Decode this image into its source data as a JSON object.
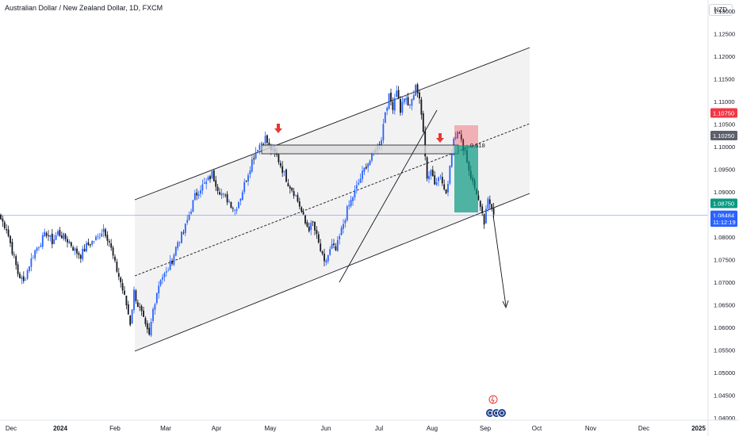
{
  "header": {
    "title": "Australian Dollar / New Zealand Dollar, 1D, FXCM",
    "currency": "NZD"
  },
  "colors": {
    "up": "#2962ff",
    "down": "#131722",
    "channel_fill": "#f2f2f2",
    "line": "#131722",
    "arrow_red": "#e53935",
    "tp_green": "#089981",
    "sl_red": "#f23645",
    "current_line": "#2962ff"
  },
  "chart_data": {
    "type": "candlestick",
    "y_ticks": [
      "1.13000",
      "1.12500",
      "1.12000",
      "1.11500",
      "1.11000",
      "1.10500",
      "1.10000",
      "1.09500",
      "1.09000",
      "1.08500",
      "1.08000",
      "1.07500",
      "1.07000",
      "1.06500",
      "1.06000",
      "1.05500",
      "1.05000",
      "1.04500",
      "1.04000"
    ],
    "ylim": [
      1.0395,
      1.1325
    ],
    "x_ticks": [
      {
        "label": "Dec",
        "bold": false
      },
      {
        "label": "2024",
        "bold": true
      },
      {
        "label": "Feb",
        "bold": false
      },
      {
        "label": "Mar",
        "bold": false
      },
      {
        "label": "Apr",
        "bold": false
      },
      {
        "label": "May",
        "bold": false
      },
      {
        "label": "Jun",
        "bold": false
      },
      {
        "label": "Jul",
        "bold": false
      },
      {
        "label": "Aug",
        "bold": false
      },
      {
        "label": "Sep",
        "bold": false
      },
      {
        "label": "Oct",
        "bold": false
      },
      {
        "label": "Nov",
        "bold": false
      },
      {
        "label": "Dec",
        "bold": false
      },
      {
        "label": "2025",
        "bold": true
      }
    ],
    "price_labels": [
      {
        "text": "1.10750",
        "value": 1.1075,
        "color": "#f23645"
      },
      {
        "text": "1.10250",
        "value": 1.1025,
        "color": "#5d606b"
      },
      {
        "text": "1.08750",
        "value": 1.0875,
        "color": "#089981"
      },
      {
        "text": "1.08484",
        "value": 1.08484,
        "color": "#2962ff"
      },
      {
        "text": "11:12:19",
        "value": 1.08334,
        "color": "#2962ff"
      }
    ],
    "current_price": 1.08484,
    "fib_label": "0.618",
    "series_anchors": [
      [
        0,
        1.084
      ],
      [
        3,
        1.082
      ],
      [
        6,
        1.077
      ],
      [
        9,
        1.072
      ],
      [
        12,
        1.07
      ],
      [
        15,
        1.074
      ],
      [
        18,
        1.077
      ],
      [
        21,
        1.079
      ],
      [
        24,
        1.081
      ],
      [
        27,
        1.079
      ],
      [
        30,
        1.081
      ],
      [
        33,
        1.08
      ],
      [
        36,
        1.079
      ],
      [
        39,
        1.077
      ],
      [
        42,
        1.076
      ],
      [
        45,
        1.078
      ],
      [
        48,
        1.079
      ],
      [
        51,
        1.08
      ],
      [
        54,
        1.082
      ],
      [
        57,
        1.079
      ],
      [
        60,
        1.074
      ],
      [
        63,
        1.07
      ],
      [
        66,
        1.065
      ],
      [
        68,
        1.061
      ],
      [
        70,
        1.068
      ],
      [
        72,
        1.065
      ],
      [
        74,
        1.063
      ],
      [
        76,
        1.06
      ],
      [
        78,
        1.058
      ],
      [
        80,
        1.064
      ],
      [
        82,
        1.068
      ],
      [
        84,
        1.071
      ],
      [
        87,
        1.072
      ],
      [
        90,
        1.075
      ],
      [
        93,
        1.079
      ],
      [
        96,
        1.081
      ],
      [
        99,
        1.085
      ],
      [
        102,
        1.089
      ],
      [
        105,
        1.091
      ],
      [
        108,
        1.092
      ],
      [
        111,
        1.094
      ],
      [
        114,
        1.091
      ],
      [
        117,
        1.089
      ],
      [
        120,
        1.088
      ],
      [
        123,
        1.086
      ],
      [
        126,
        1.089
      ],
      [
        129,
        1.093
      ],
      [
        132,
        1.097
      ],
      [
        135,
        1.1
      ],
      [
        137,
        1.101
      ],
      [
        139,
        1.102
      ],
      [
        141,
        1.1
      ],
      [
        143,
        1.099
      ],
      [
        145,
        1.098
      ],
      [
        148,
        1.095
      ],
      [
        151,
        1.092
      ],
      [
        154,
        1.09
      ],
      [
        157,
        1.087
      ],
      [
        160,
        1.083
      ],
      [
        162,
        1.082
      ],
      [
        164,
        1.083
      ],
      [
        166,
        1.08
      ],
      [
        168,
        1.077
      ],
      [
        170,
        1.074
      ],
      [
        172,
        1.076
      ],
      [
        174,
        1.078
      ],
      [
        176,
        1.077
      ],
      [
        178,
        1.08
      ],
      [
        180,
        1.083
      ],
      [
        182,
        1.086
      ],
      [
        184,
        1.088
      ],
      [
        186,
        1.09
      ],
      [
        188,
        1.092
      ],
      [
        190,
        1.094
      ],
      [
        192,
        1.096
      ],
      [
        194,
        1.097
      ],
      [
        196,
        1.099
      ],
      [
        198,
        1.1
      ],
      [
        200,
        1.102
      ],
      [
        202,
        1.108
      ],
      [
        204,
        1.111
      ],
      [
        206,
        1.109
      ],
      [
        208,
        1.113
      ],
      [
        210,
        1.108
      ],
      [
        212,
        1.111
      ],
      [
        214,
        1.109
      ],
      [
        216,
        1.11
      ],
      [
        218,
        1.114
      ],
      [
        220,
        1.11
      ],
      [
        222,
        1.104
      ],
      [
        224,
        1.093
      ],
      [
        226,
        1.095
      ],
      [
        228,
        1.092
      ],
      [
        230,
        1.094
      ],
      [
        232,
        1.092
      ],
      [
        234,
        1.089
      ],
      [
        236,
        1.096
      ],
      [
        238,
        1.102
      ],
      [
        240,
        1.104
      ],
      [
        242,
        1.101
      ],
      [
        244,
        1.099
      ],
      [
        246,
        1.095
      ],
      [
        248,
        1.092
      ],
      [
        250,
        1.09
      ],
      [
        252,
        1.086
      ],
      [
        254,
        1.083
      ],
      [
        256,
        1.088
      ],
      [
        258,
        1.087
      ],
      [
        259,
        1.085
      ]
    ]
  }
}
